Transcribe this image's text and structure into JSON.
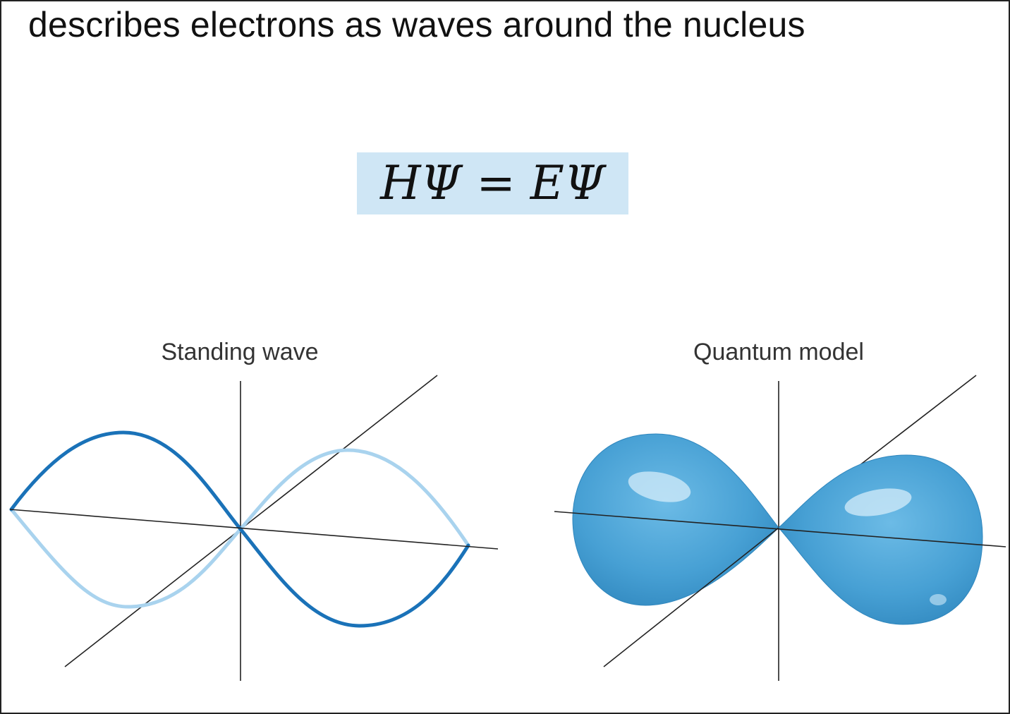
{
  "slide": {
    "heading": "describes electrons as waves around the nucleus",
    "equation": "HΨ = EΨ"
  },
  "panels": {
    "left": {
      "caption": "Standing wave"
    },
    "right": {
      "caption": "Quantum model"
    }
  },
  "colors": {
    "equation_highlight": "#cfe6f5",
    "wave_dark": "#1a72b8",
    "wave_light": "#a9d3ee",
    "orbital_fill": "#4aa3d6",
    "orbital_highlight": "#cfeaf8",
    "axis": "#222222"
  }
}
